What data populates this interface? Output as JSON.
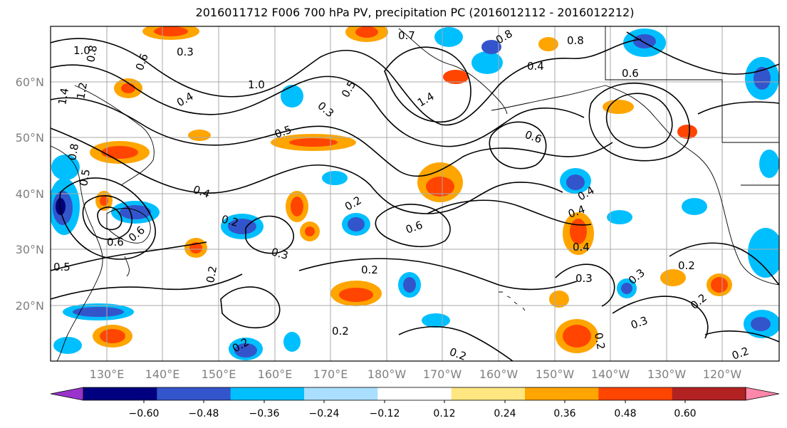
{
  "title": "2016011712 F006 700 hPa PV, precipitation PC (2016012112 - 2016012212)",
  "map": {
    "lat_labels": [
      "60°N",
      "50°N",
      "40°N",
      "30°N",
      "20°N"
    ],
    "lon_labels": [
      "130°E",
      "140°E",
      "150°E",
      "160°E",
      "170°E",
      "180°W",
      "170°W",
      "160°W",
      "150°W",
      "140°W",
      "130°W",
      "120°W"
    ],
    "contour_labels": [
      {
        "text": "1.0"
      },
      {
        "text": "0.8"
      },
      {
        "text": "1.4"
      },
      {
        "text": "1.2"
      },
      {
        "text": "0.6"
      },
      {
        "text": "0.3"
      },
      {
        "text": "0.7"
      },
      {
        "text": "0.8"
      },
      {
        "text": "0.6"
      },
      {
        "text": "1.0"
      },
      {
        "text": "0.4"
      },
      {
        "text": "0.5"
      },
      {
        "text": "0.3"
      },
      {
        "text": "1.4"
      },
      {
        "text": "0.8"
      },
      {
        "text": "0.4"
      },
      {
        "text": "0.6"
      },
      {
        "text": "0.4"
      },
      {
        "text": "0.6"
      },
      {
        "text": "0.5"
      },
      {
        "text": "0.8"
      },
      {
        "text": "0.5"
      },
      {
        "text": "0.4"
      },
      {
        "text": "0.2"
      },
      {
        "text": "0.2"
      },
      {
        "text": "0.2"
      },
      {
        "text": "0.6"
      },
      {
        "text": "0.6"
      },
      {
        "text": "0.3"
      },
      {
        "text": "0.4"
      },
      {
        "text": "0.4"
      },
      {
        "text": "0.3"
      },
      {
        "text": "0.2"
      },
      {
        "text": "0.5"
      },
      {
        "text": "0.2"
      },
      {
        "text": "0.3"
      },
      {
        "text": "0.2"
      },
      {
        "text": "0.3"
      },
      {
        "text": "0.2"
      },
      {
        "text": "0.2"
      },
      {
        "text": "0.2"
      },
      {
        "text": "0.2"
      },
      {
        "text": "0.2"
      }
    ]
  },
  "colorbar": {
    "colors": [
      "#9933cc",
      "#000080",
      "#3355cc",
      "#00bfff",
      "#aadfff",
      "#ffffff",
      "#ffe680",
      "#ffa500",
      "#ff4500",
      "#b22222",
      "#ff88aa"
    ],
    "tick_labels": [
      "−0.60",
      "−0.48",
      "−0.36",
      "−0.24",
      "−0.12",
      "0.12",
      "0.24",
      "0.36",
      "0.48",
      "0.60"
    ]
  }
}
